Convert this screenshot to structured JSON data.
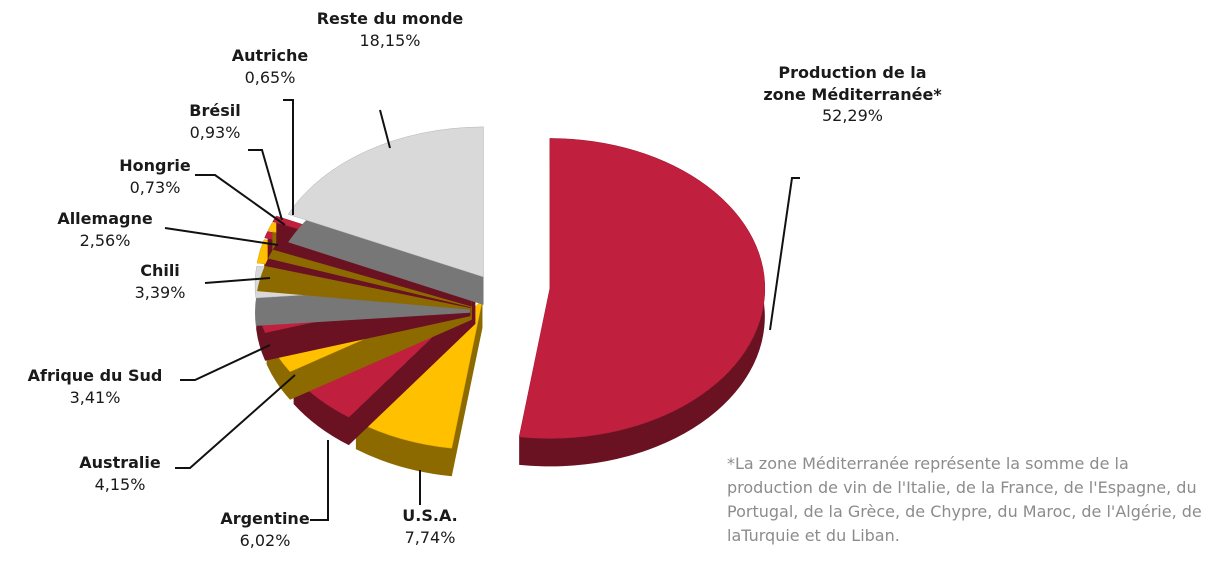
{
  "chart_data": {
    "type": "pie",
    "categories": [
      "Production de la zone Méditerranée*",
      "U.S.A.",
      "Argentine",
      "Australie",
      "Afrique du Sud",
      "Chili",
      "Allemagne",
      "Hongrie",
      "Brésil",
      "Autriche",
      "Reste du monde"
    ],
    "values": [
      52.29,
      7.74,
      6.02,
      4.15,
      3.41,
      3.39,
      2.56,
      0.73,
      0.93,
      0.65,
      18.15
    ],
    "value_labels": [
      "52,29%",
      "7,74%",
      "6,02%",
      "4,15%",
      "3,41%",
      "3,39%",
      "2,56%",
      "0,73%",
      "0,93%",
      "0,65%",
      "18,15%"
    ],
    "colors": [
      "#c01f3d",
      "#ffc000",
      "#c01f3d",
      "#ffc000",
      "#c01f3d",
      "#d9d9d9",
      "#ffc000",
      "#c01f3d",
      "#ffc000",
      "#c01f3d",
      "#d9d9d9"
    ],
    "note": "*La zone Méditerranée représente la somme de la production de vin de l'Italie, de la France, de l'Espagne, du Portugal, de la Grèce, de Chypre, du Maroc, de l'Algérie, de laTurquie et du Liban."
  }
}
